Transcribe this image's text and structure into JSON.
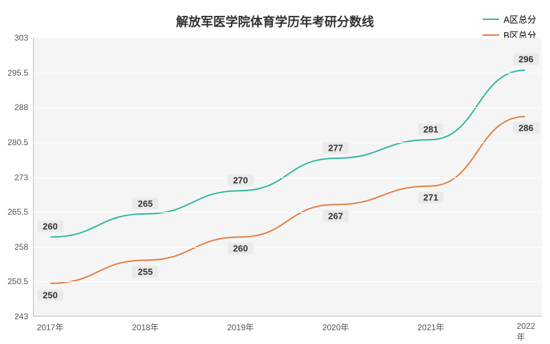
{
  "chart": {
    "type": "line",
    "title": "解放军医学院体育学历年考研分数线",
    "title_fontsize": 18,
    "background_color": "#ffffff",
    "plot_background": "#f5f5f5",
    "grid_color": "#ffffff",
    "border_color": "#bbbbbb",
    "label_fontsize": 12,
    "x_categories": [
      "2017年",
      "2018年",
      "2019年",
      "2020年",
      "2021年",
      "2022年"
    ],
    "y_min": 243,
    "y_max": 303,
    "y_tick_step": 7.5,
    "y_ticks": [
      243,
      250.5,
      258,
      265.5,
      273,
      280.5,
      288,
      295.5,
      303
    ],
    "series": [
      {
        "name": "A区总分",
        "color": "#2fb8a0",
        "values": [
          260,
          265,
          270,
          277,
          281,
          296
        ]
      },
      {
        "name": "B区总分",
        "color": "#e47c3c",
        "values": [
          250,
          255,
          260,
          267,
          271,
          286
        ]
      }
    ],
    "line_width": 2,
    "data_label_bg": "#eaeaea",
    "data_label_fontsize": 13
  }
}
